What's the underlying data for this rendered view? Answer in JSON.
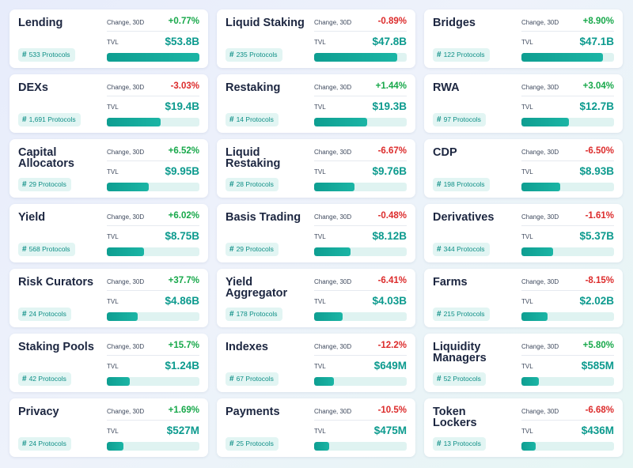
{
  "labels": {
    "change": "Change, 30D",
    "tvl": "TVL",
    "protocols_suffix": "Protocols",
    "hash": "#"
  },
  "cards": [
    {
      "name": "Lending",
      "change": "+0.77%",
      "trend": "positive",
      "tvl": "$53.8B",
      "protocols": "533",
      "share": 1.0
    },
    {
      "name": "Liquid Staking",
      "change": "-0.89%",
      "trend": "negative",
      "tvl": "$47.8B",
      "protocols": "235",
      "share": 0.9
    },
    {
      "name": "Bridges",
      "change": "+8.90%",
      "trend": "positive",
      "tvl": "$47.1B",
      "protocols": "122",
      "share": 0.88
    },
    {
      "name": "DEXs",
      "change": "-3.03%",
      "trend": "negative",
      "tvl": "$19.4B",
      "protocols": "1,691",
      "share": 0.58
    },
    {
      "name": "Restaking",
      "change": "+1.44%",
      "trend": "positive",
      "tvl": "$19.3B",
      "protocols": "14",
      "share": 0.57
    },
    {
      "name": "RWA",
      "change": "+3.04%",
      "trend": "positive",
      "tvl": "$12.7B",
      "protocols": "97",
      "share": 0.51
    },
    {
      "name": "Capital Allocators",
      "change": "+6.52%",
      "trend": "positive",
      "tvl": "$9.95B",
      "protocols": "29",
      "share": 0.45
    },
    {
      "name": "Liquid Restaking",
      "change": "-6.67%",
      "trend": "negative",
      "tvl": "$9.76B",
      "protocols": "28",
      "share": 0.44
    },
    {
      "name": "CDP",
      "change": "-6.50%",
      "trend": "negative",
      "tvl": "$8.93B",
      "protocols": "198",
      "share": 0.42
    },
    {
      "name": "Yield",
      "change": "+6.02%",
      "trend": "positive",
      "tvl": "$8.75B",
      "protocols": "568",
      "share": 0.4
    },
    {
      "name": "Basis Trading",
      "change": "-0.48%",
      "trend": "negative",
      "tvl": "$8.12B",
      "protocols": "29",
      "share": 0.39
    },
    {
      "name": "Derivatives",
      "change": "-1.61%",
      "trend": "negative",
      "tvl": "$5.37B",
      "protocols": "344",
      "share": 0.34
    },
    {
      "name": "Risk Curators",
      "change": "+37.7%",
      "trend": "positive",
      "tvl": "$4.86B",
      "protocols": "24",
      "share": 0.33
    },
    {
      "name": "Yield Aggregator",
      "change": "-6.41%",
      "trend": "negative",
      "tvl": "$4.03B",
      "protocols": "178",
      "share": 0.31
    },
    {
      "name": "Farms",
      "change": "-8.15%",
      "trend": "negative",
      "tvl": "$2.02B",
      "protocols": "215",
      "share": 0.28
    },
    {
      "name": "Staking Pools",
      "change": "+15.7%",
      "trend": "positive",
      "tvl": "$1.24B",
      "protocols": "42",
      "share": 0.25
    },
    {
      "name": "Indexes",
      "change": "-12.2%",
      "trend": "negative",
      "tvl": "$649M",
      "protocols": "67",
      "share": 0.21
    },
    {
      "name": "Liquidity Managers",
      "change": "+5.80%",
      "trend": "positive",
      "tvl": "$585M",
      "protocols": "52",
      "share": 0.19
    },
    {
      "name": "Privacy",
      "change": "+1.69%",
      "trend": "positive",
      "tvl": "$527M",
      "protocols": "24",
      "share": 0.18
    },
    {
      "name": "Payments",
      "change": "-10.5%",
      "trend": "negative",
      "tvl": "$475M",
      "protocols": "25",
      "share": 0.16
    },
    {
      "name": "Token Lockers",
      "change": "-6.68%",
      "trend": "negative",
      "tvl": "$436M",
      "protocols": "13",
      "share": 0.15
    }
  ],
  "colors": {
    "positive": "#17a84a",
    "negative": "#dc2b2b",
    "tvl": "#0c9a8e",
    "bar": "#12a597"
  }
}
